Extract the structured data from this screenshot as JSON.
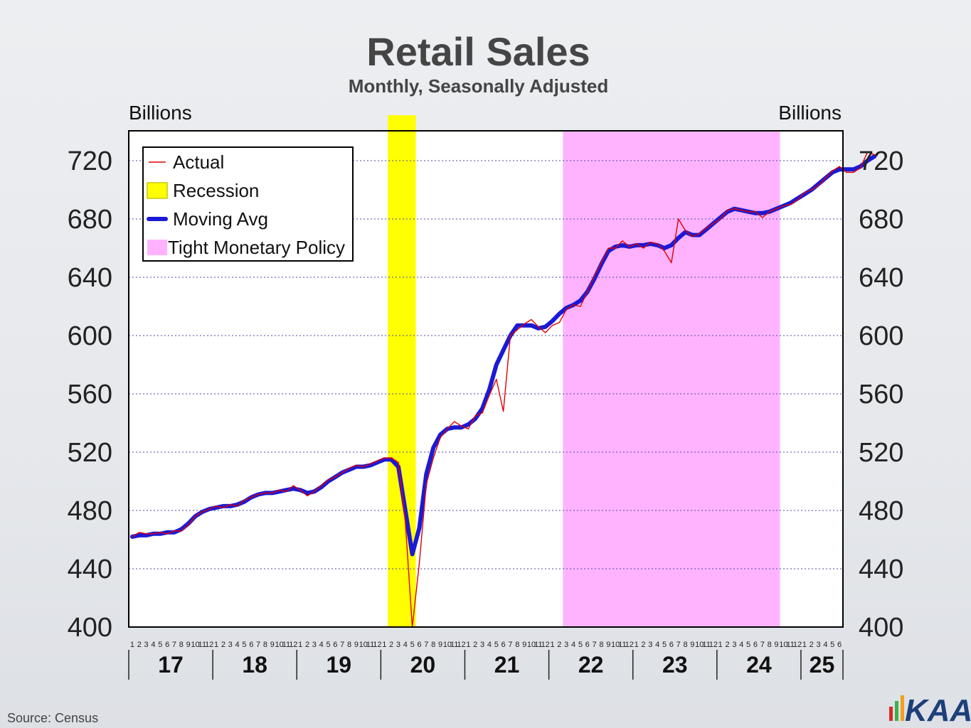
{
  "title": "Retail Sales",
  "subtitle": "Monthly, Seasonally Adjusted",
  "source": "Source: Census",
  "logo_text": "KAA",
  "chart_data": {
    "type": "line",
    "title": "Retail Sales",
    "subtitle": "Monthly, Seasonally Adjusted",
    "ylabel_left": "Billions",
    "ylabel_right": "Billions",
    "ylim": [
      400,
      740
    ],
    "yticks": [
      400,
      440,
      480,
      520,
      560,
      600,
      640,
      680,
      720
    ],
    "grid": "horizontal dashed",
    "legend_placement": "top-left",
    "legend": [
      {
        "label": "Actual",
        "color": "#e00000",
        "kind": "line"
      },
      {
        "label": "Recession",
        "color": "#ffff00",
        "kind": "box"
      },
      {
        "label": "Moving Avg",
        "color": "#1a1ad6",
        "kind": "thick"
      },
      {
        "label": "Tight Monetary Policy",
        "color": "#ffb3ff",
        "kind": "box"
      }
    ],
    "years": [
      "17",
      "18",
      "19",
      "20",
      "21",
      "22",
      "23",
      "24",
      "25"
    ],
    "month_ticks": [
      "1",
      "2",
      "3",
      "4",
      "5",
      "6",
      "7",
      "8",
      "9",
      "10",
      "11",
      "12"
    ],
    "last_year_months": 6,
    "shading": [
      {
        "label": "Recession",
        "start": "2020-02",
        "end": "2020-05",
        "color": "#ffff00"
      },
      {
        "label": "Tight Monetary Policy",
        "start": "2022-03",
        "end": "2024-09",
        "color": "#ffb3ff"
      }
    ],
    "start": "2017-01",
    "series": [
      {
        "name": "Actual",
        "color": "#e00000",
        "values": [
          462,
          465,
          464,
          464,
          465,
          464,
          466,
          466,
          470,
          476,
          479,
          481,
          483,
          482,
          484,
          483,
          487,
          489,
          491,
          492,
          492,
          494,
          493,
          497,
          494,
          490,
          493,
          497,
          501,
          503,
          506,
          509,
          511,
          510,
          512,
          514,
          516,
          516,
          513,
          472,
          400,
          444,
          498,
          516,
          530,
          536,
          541,
          538,
          536,
          545,
          547,
          559,
          570,
          548,
          600,
          604,
          608,
          611,
          606,
          602,
          607,
          609,
          618,
          621,
          620,
          630,
          641,
          650,
          660,
          660,
          665,
          661,
          663,
          660,
          664,
          663,
          658,
          650,
          680,
          672,
          668,
          670,
          674,
          677,
          680,
          686,
          687,
          686,
          685,
          685,
          681,
          685,
          687,
          689,
          690,
          693,
          698,
          700,
          703,
          708,
          713,
          716,
          712,
          712,
          715,
          726,
          724
        ]
      },
      {
        "name": "Moving Avg",
        "color": "#1a1ad6",
        "values": [
          462,
          463,
          463,
          464,
          464,
          465,
          465,
          467,
          471,
          476,
          479,
          481,
          482,
          483,
          483,
          484,
          486,
          489,
          491,
          492,
          492,
          493,
          494,
          495,
          494,
          492,
          493,
          496,
          500,
          503,
          506,
          508,
          510,
          510,
          511,
          513,
          515,
          515,
          510,
          480,
          450,
          468,
          505,
          523,
          532,
          536,
          537,
          537,
          539,
          543,
          550,
          563,
          580,
          590,
          600,
          607,
          607,
          607,
          605,
          606,
          610,
          615,
          619,
          621,
          624,
          630,
          639,
          649,
          658,
          661,
          662,
          661,
          662,
          662,
          663,
          662,
          660,
          662,
          667,
          671,
          669,
          669,
          673,
          677,
          681,
          685,
          687,
          686,
          685,
          684,
          684,
          685,
          687,
          689,
          691,
          694,
          697,
          700,
          704,
          708,
          712,
          714,
          714,
          714,
          716,
          720,
          723
        ]
      }
    ]
  }
}
